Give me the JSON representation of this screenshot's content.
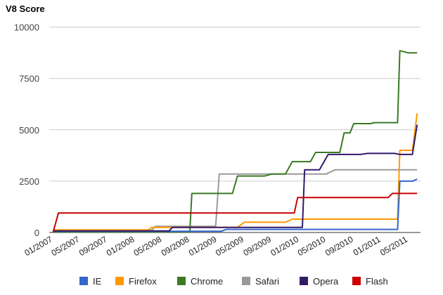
{
  "chart_data": {
    "type": "line",
    "title": "V8 Score",
    "xlabel": "",
    "ylabel": "",
    "ylim": [
      0,
      10500
    ],
    "xlim": [
      "2006-12-15",
      "2011-06-25"
    ],
    "y_ticks": [
      0,
      2500,
      5000,
      7500,
      10000
    ],
    "y_tick_labels": [
      "0",
      "2500",
      "5000",
      "7500",
      "10000"
    ],
    "x_ticks": [
      "2007-01-01",
      "2007-05-01",
      "2007-09-01",
      "2008-01-01",
      "2008-05-01",
      "2008-09-01",
      "2009-01-01",
      "2009-05-01",
      "2009-09-01",
      "2010-01-01",
      "2010-05-01",
      "2010-09-01",
      "2011-01-01",
      "2011-05-01"
    ],
    "x_tick_labels": [
      "01/2007",
      "05/2007",
      "09/2007",
      "01/2008",
      "05/2008",
      "09/2008",
      "01/2009",
      "05/2009",
      "09/2009",
      "01/2010",
      "05/2010",
      "09/2010",
      "01/2011",
      "05/2011"
    ],
    "grid": "horizontal",
    "legend": "bottom",
    "series": [
      {
        "name": "IE",
        "color": "#3366cc",
        "points": [
          [
            "2007-01-01",
            60
          ],
          [
            "2008-12-15",
            60
          ],
          [
            "2009-01-20",
            60
          ],
          [
            "2009-02-10",
            150
          ],
          [
            "2011-03-15",
            150
          ],
          [
            "2011-03-25",
            2500
          ],
          [
            "2011-05-20",
            2500
          ],
          [
            "2011-06-10",
            2600
          ]
        ]
      },
      {
        "name": "Firefox",
        "color": "#ff9900",
        "points": [
          [
            "2007-01-01",
            130
          ],
          [
            "2008-03-01",
            130
          ],
          [
            "2008-03-15",
            250
          ],
          [
            "2009-04-01",
            250
          ],
          [
            "2009-05-01",
            500
          ],
          [
            "2009-11-01",
            500
          ],
          [
            "2009-12-01",
            650
          ],
          [
            "2011-03-15",
            650
          ],
          [
            "2011-03-25",
            4000
          ],
          [
            "2011-05-20",
            4000
          ],
          [
            "2011-06-10",
            5800
          ]
        ]
      },
      {
        "name": "Chrome",
        "color": "#3a7a24",
        "points": [
          [
            "2007-01-01",
            30
          ],
          [
            "2008-09-01",
            30
          ],
          [
            "2008-09-10",
            1900
          ],
          [
            "2009-03-10",
            1900
          ],
          [
            "2009-04-01",
            2750
          ],
          [
            "2009-08-01",
            2750
          ],
          [
            "2009-09-01",
            2850
          ],
          [
            "2009-11-01",
            2850
          ],
          [
            "2009-12-01",
            3450
          ],
          [
            "2010-02-20",
            3450
          ],
          [
            "2010-03-15",
            3900
          ],
          [
            "2010-07-01",
            3900
          ],
          [
            "2010-07-20",
            4850
          ],
          [
            "2010-08-15",
            4850
          ],
          [
            "2010-09-01",
            5300
          ],
          [
            "2010-11-15",
            5300
          ],
          [
            "2010-12-01",
            5350
          ],
          [
            "2011-03-15",
            5350
          ],
          [
            "2011-03-25",
            8850
          ],
          [
            "2011-05-01",
            8750
          ],
          [
            "2011-06-10",
            8750
          ]
        ]
      },
      {
        "name": "Safari",
        "color": "#999999",
        "points": [
          [
            "2007-01-01",
            110
          ],
          [
            "2008-03-15",
            110
          ],
          [
            "2008-04-01",
            300
          ],
          [
            "2008-12-25",
            300
          ],
          [
            "2009-01-10",
            2850
          ],
          [
            "2010-05-01",
            2850
          ],
          [
            "2010-06-10",
            3050
          ],
          [
            "2011-06-10",
            3050
          ]
        ]
      },
      {
        "name": "Opera",
        "color": "#33196b",
        "points": [
          [
            "2007-01-01",
            80
          ],
          [
            "2008-06-01",
            80
          ],
          [
            "2008-06-15",
            250
          ],
          [
            "2009-09-01",
            250
          ],
          [
            "2010-01-15",
            250
          ],
          [
            "2010-01-25",
            3050
          ],
          [
            "2010-04-01",
            3050
          ],
          [
            "2010-05-10",
            3800
          ],
          [
            "2010-10-01",
            3800
          ],
          [
            "2010-11-01",
            3850
          ],
          [
            "2011-03-01",
            3850
          ],
          [
            "2011-03-25",
            3800
          ],
          [
            "2011-05-20",
            3800
          ],
          [
            "2011-06-10",
            5250
          ]
        ]
      },
      {
        "name": "Flash",
        "color": "#cc0000",
        "points": [
          [
            "2007-01-01",
            0
          ],
          [
            "2007-01-25",
            950
          ],
          [
            "2009-12-10",
            950
          ],
          [
            "2009-12-25",
            1700
          ],
          [
            "2011-02-01",
            1700
          ],
          [
            "2011-02-20",
            1900
          ],
          [
            "2011-06-10",
            1900
          ]
        ]
      }
    ]
  }
}
